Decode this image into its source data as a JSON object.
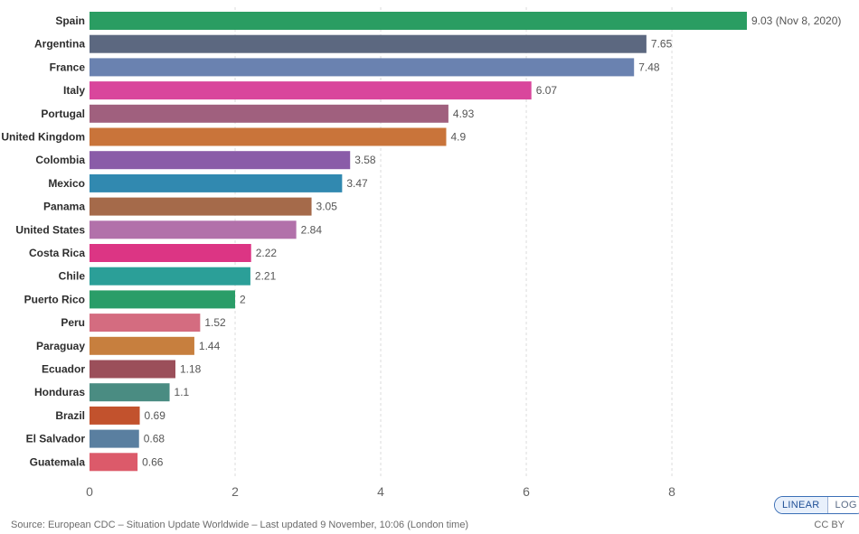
{
  "chart_data": {
    "type": "bar",
    "orientation": "horizontal",
    "categories": [
      "Spain",
      "Argentina",
      "France",
      "Italy",
      "Portugal",
      "United Kingdom",
      "Colombia",
      "Mexico",
      "Panama",
      "United States",
      "Costa Rica",
      "Chile",
      "Puerto Rico",
      "Peru",
      "Paraguay",
      "Ecuador",
      "Honduras",
      "Brazil",
      "El Salvador",
      "Guatemala"
    ],
    "values": [
      9.03,
      7.65,
      7.48,
      6.07,
      4.93,
      4.9,
      3.58,
      3.47,
      3.05,
      2.84,
      2.22,
      2.21,
      2,
      1.52,
      1.44,
      1.18,
      1.1,
      0.69,
      0.68,
      0.66
    ],
    "value_labels": [
      "9.03 (Nov 8, 2020)",
      "7.65",
      "7.48",
      "6.07",
      "4.93",
      "4.9",
      "3.58",
      "3.47",
      "3.05",
      "2.84",
      "2.22",
      "2.21",
      "2",
      "1.52",
      "1.44",
      "1.18",
      "1.1",
      "0.69",
      "0.68",
      "0.66"
    ],
    "colors": [
      "#2a9d62",
      "#5c6880",
      "#6a82b0",
      "#d9469c",
      "#a0607e",
      "#c9743a",
      "#8a5ca8",
      "#3189b0",
      "#a56a4a",
      "#b271aa",
      "#dc3584",
      "#2b9f98",
      "#2a9d68",
      "#d46c80",
      "#c77f3e",
      "#9b4f5a",
      "#4a8c82",
      "#c2522d",
      "#5a7fa0",
      "#dc5a6a"
    ],
    "x_ticks": [
      0,
      2,
      4,
      6,
      8
    ],
    "xlim": [
      0,
      9.03
    ],
    "grid": true,
    "title": "",
    "xlabel": "",
    "ylabel": ""
  },
  "controls": {
    "linear_label": "LINEAR",
    "log_label": "LOG"
  },
  "footer": {
    "source": "Source: European CDC – Situation Update Worldwide – Last updated 9 November, 10:06 (London time)",
    "license": "CC BY"
  }
}
